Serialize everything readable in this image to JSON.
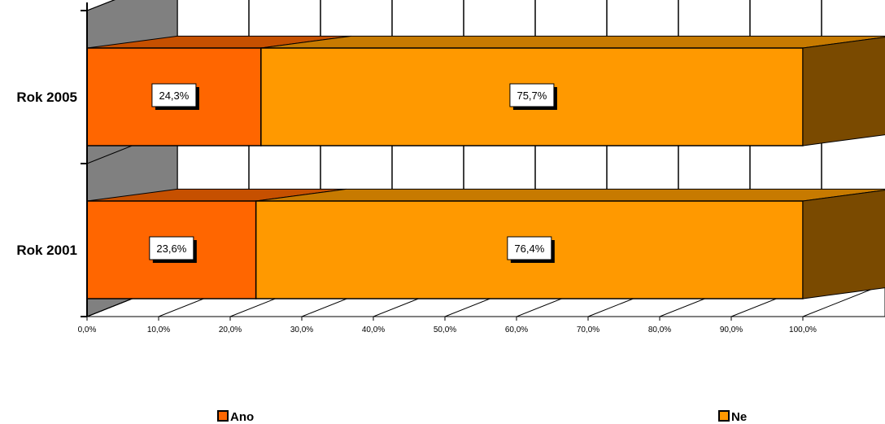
{
  "chart_data": {
    "type": "bar",
    "orientation": "horizontal",
    "stacked": true,
    "three_d": true,
    "categories": [
      "Rok 2005",
      "Rok 2001"
    ],
    "series": [
      {
        "name": "Ano",
        "values": [
          24.3,
          23.6
        ],
        "labels": [
          "24,3%",
          "23,6%"
        ],
        "color": "#FF6600"
      },
      {
        "name": "Ne",
        "values": [
          75.7,
          76.4
        ],
        "labels": [
          "75,7%",
          "76,4%"
        ],
        "color": "#FF9900"
      }
    ],
    "x_ticks": [
      "0,0%",
      "10,0%",
      "20,0%",
      "30,0%",
      "40,0%",
      "50,0%",
      "60,0%",
      "70,0%",
      "80,0%",
      "90,0%",
      "100,0%"
    ],
    "xlim": [
      0,
      100
    ],
    "grid": true,
    "legend": "bottom",
    "colors": {
      "wall": "#808080",
      "ano_top": "#C65000",
      "ne_top": "#C77A00",
      "ne_side": "#7A4A00"
    }
  }
}
